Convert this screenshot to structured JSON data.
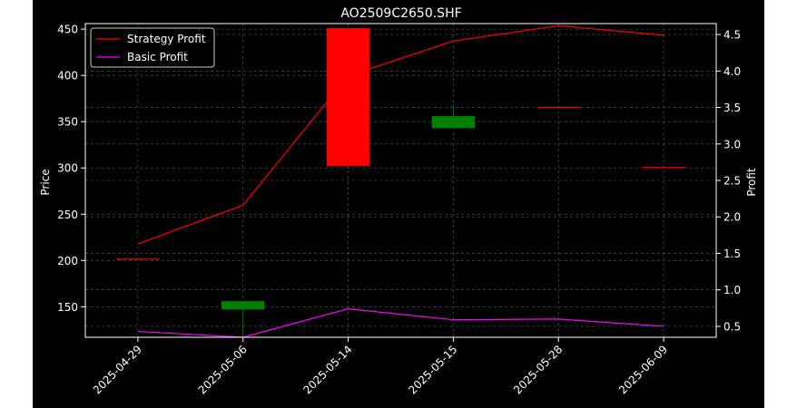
{
  "chart_data": {
    "type": "candlestick_with_lines",
    "title": "AO2509C2650.SHF",
    "ylabel_left": "Price",
    "ylabel_right": "Profit",
    "xlabel": "",
    "categories": [
      "2025-04-29",
      "2025-05-06",
      "2025-05-14",
      "2025-05-15",
      "2025-05-28",
      "2025-06-09"
    ],
    "left_axis": {
      "ylim": [
        117,
        456
      ],
      "ticks": [
        150,
        200,
        250,
        300,
        350,
        400,
        450
      ]
    },
    "right_axis": {
      "ylim": [
        0.35,
        4.65
      ],
      "ticks": [
        "0.5",
        "1.0",
        "1.5",
        "2.0",
        "2.5",
        "3.0",
        "3.5",
        "4.0",
        "4.5"
      ]
    },
    "candles": [
      {
        "date": "2025-04-29",
        "open": 202,
        "high": 202,
        "low": 202,
        "close": 202
      },
      {
        "date": "2025-05-06",
        "open": 156,
        "high": 156,
        "low": 117,
        "close": 147
      },
      {
        "date": "2025-05-14",
        "open": 302,
        "high": 451,
        "low": 302,
        "close": 451
      },
      {
        "date": "2025-05-15",
        "open": 356,
        "high": 367,
        "low": 343,
        "close": 343
      },
      {
        "date": "2025-05-28",
        "open": 366,
        "high": 366,
        "low": 366,
        "close": 366
      },
      {
        "date": "2025-06-09",
        "open": 301,
        "high": 301,
        "low": 301,
        "close": 301
      }
    ],
    "series": [
      {
        "name": "Strategy Profit",
        "color": "#ff0000",
        "axis": "right",
        "values": [
          1.63,
          2.16,
          3.93,
          4.41,
          4.62,
          4.49
        ]
      },
      {
        "name": "Basic Profit",
        "color": "#ff00ff",
        "axis": "right",
        "values": [
          0.43,
          0.35,
          0.74,
          0.59,
          0.6,
          0.5
        ]
      }
    ],
    "legend": "top-left",
    "grid": true,
    "colors": {
      "up": "#ff0000",
      "down": "#008000",
      "background": "#000000",
      "grid": "#808080"
    }
  }
}
